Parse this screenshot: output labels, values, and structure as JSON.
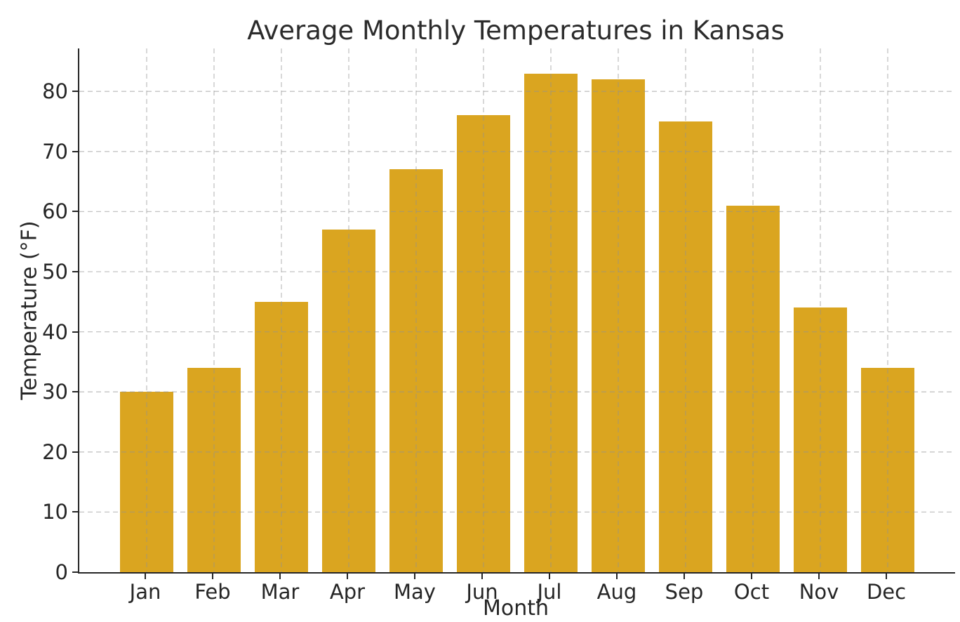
{
  "chart_data": {
    "type": "bar",
    "title": "Average Monthly Temperatures in Kansas",
    "xlabel": "Month",
    "ylabel": "Temperature (°F)",
    "categories": [
      "Jan",
      "Feb",
      "Mar",
      "Apr",
      "May",
      "Jun",
      "Jul",
      "Aug",
      "Sep",
      "Oct",
      "Nov",
      "Dec"
    ],
    "values": [
      30,
      34,
      45,
      57,
      67,
      76,
      83,
      82,
      75,
      61,
      44,
      34
    ],
    "yticks": [
      0,
      10,
      20,
      30,
      40,
      50,
      60,
      70,
      80
    ],
    "ylim": [
      0,
      87.15
    ],
    "bar_color": "#DAA520",
    "grid": true,
    "grid_linestyle": "dashed",
    "grid_on_top_of_bars": true,
    "legend_position": "none"
  }
}
